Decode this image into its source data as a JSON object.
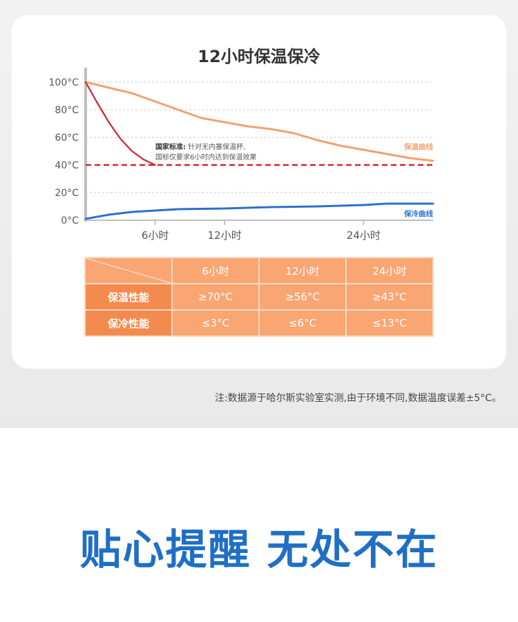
{
  "chart_data": {
    "type": "line",
    "title": "12小时保温保冷",
    "y_ticks": [
      "100°C",
      "80°C",
      "60°C",
      "40°C",
      "20°C",
      "0°C"
    ],
    "y_values": [
      100,
      80,
      60,
      40,
      20,
      0
    ],
    "ylim": [
      0,
      100
    ],
    "x_ticks": [
      {
        "label": "6小时",
        "x": 6
      },
      {
        "label": "12小时",
        "x": 12
      },
      {
        "label": "24小时",
        "x": 24
      }
    ],
    "xlim": [
      0,
      30
    ],
    "grid": true,
    "reference_line": {
      "y": 40,
      "color": "#d0242b"
    },
    "series": [
      {
        "name": "保温曲线",
        "color": "#f2a070",
        "points": [
          [
            0,
            100
          ],
          [
            2,
            96
          ],
          [
            4,
            92
          ],
          [
            6,
            86
          ],
          [
            8,
            80
          ],
          [
            10,
            74
          ],
          [
            12,
            71
          ],
          [
            14,
            68
          ],
          [
            16,
            66
          ],
          [
            18,
            63
          ],
          [
            20,
            58
          ],
          [
            22,
            54
          ],
          [
            24,
            51
          ],
          [
            26,
            48
          ],
          [
            28,
            45
          ],
          [
            30,
            43
          ]
        ]
      },
      {
        "name": "",
        "color": "#d0242b",
        "points": [
          [
            0,
            100
          ],
          [
            1,
            85
          ],
          [
            2,
            71
          ],
          [
            3,
            59
          ],
          [
            4,
            50
          ],
          [
            5,
            44
          ],
          [
            6,
            40
          ]
        ]
      },
      {
        "name": "保冷曲线",
        "color": "#2a6fd0",
        "points": [
          [
            0,
            1
          ],
          [
            2,
            4
          ],
          [
            4,
            6
          ],
          [
            6,
            7
          ],
          [
            8,
            8
          ],
          [
            12,
            8.5
          ],
          [
            16,
            9.5
          ],
          [
            20,
            10
          ],
          [
            24,
            11
          ],
          [
            26,
            12
          ],
          [
            30,
            12
          ]
        ]
      }
    ],
    "annotation": {
      "bold": "国家标准:",
      "line1": "针对无内塞保温杯,",
      "line2": "国标仅要求6小时内达到保温效果"
    }
  },
  "table": {
    "columns": [
      "6小时",
      "12小时",
      "24小时"
    ],
    "rows": [
      {
        "label": "保温性能",
        "values": [
          "≥70°C",
          "≥56°C",
          "≥43°C"
        ]
      },
      {
        "label": "保冷性能",
        "values": [
          "≤3°C",
          "≤6°C",
          "≤13°C"
        ]
      }
    ],
    "colors": {
      "header": "#f9a673",
      "row_header": "#f48b4e",
      "border": "#fbd9c3"
    }
  },
  "footnote": "注:数据源于哈尔斯实验室实测,由于环境不同,数据温度误差±5°C。",
  "slogan": "贴心提醒 无处不在"
}
